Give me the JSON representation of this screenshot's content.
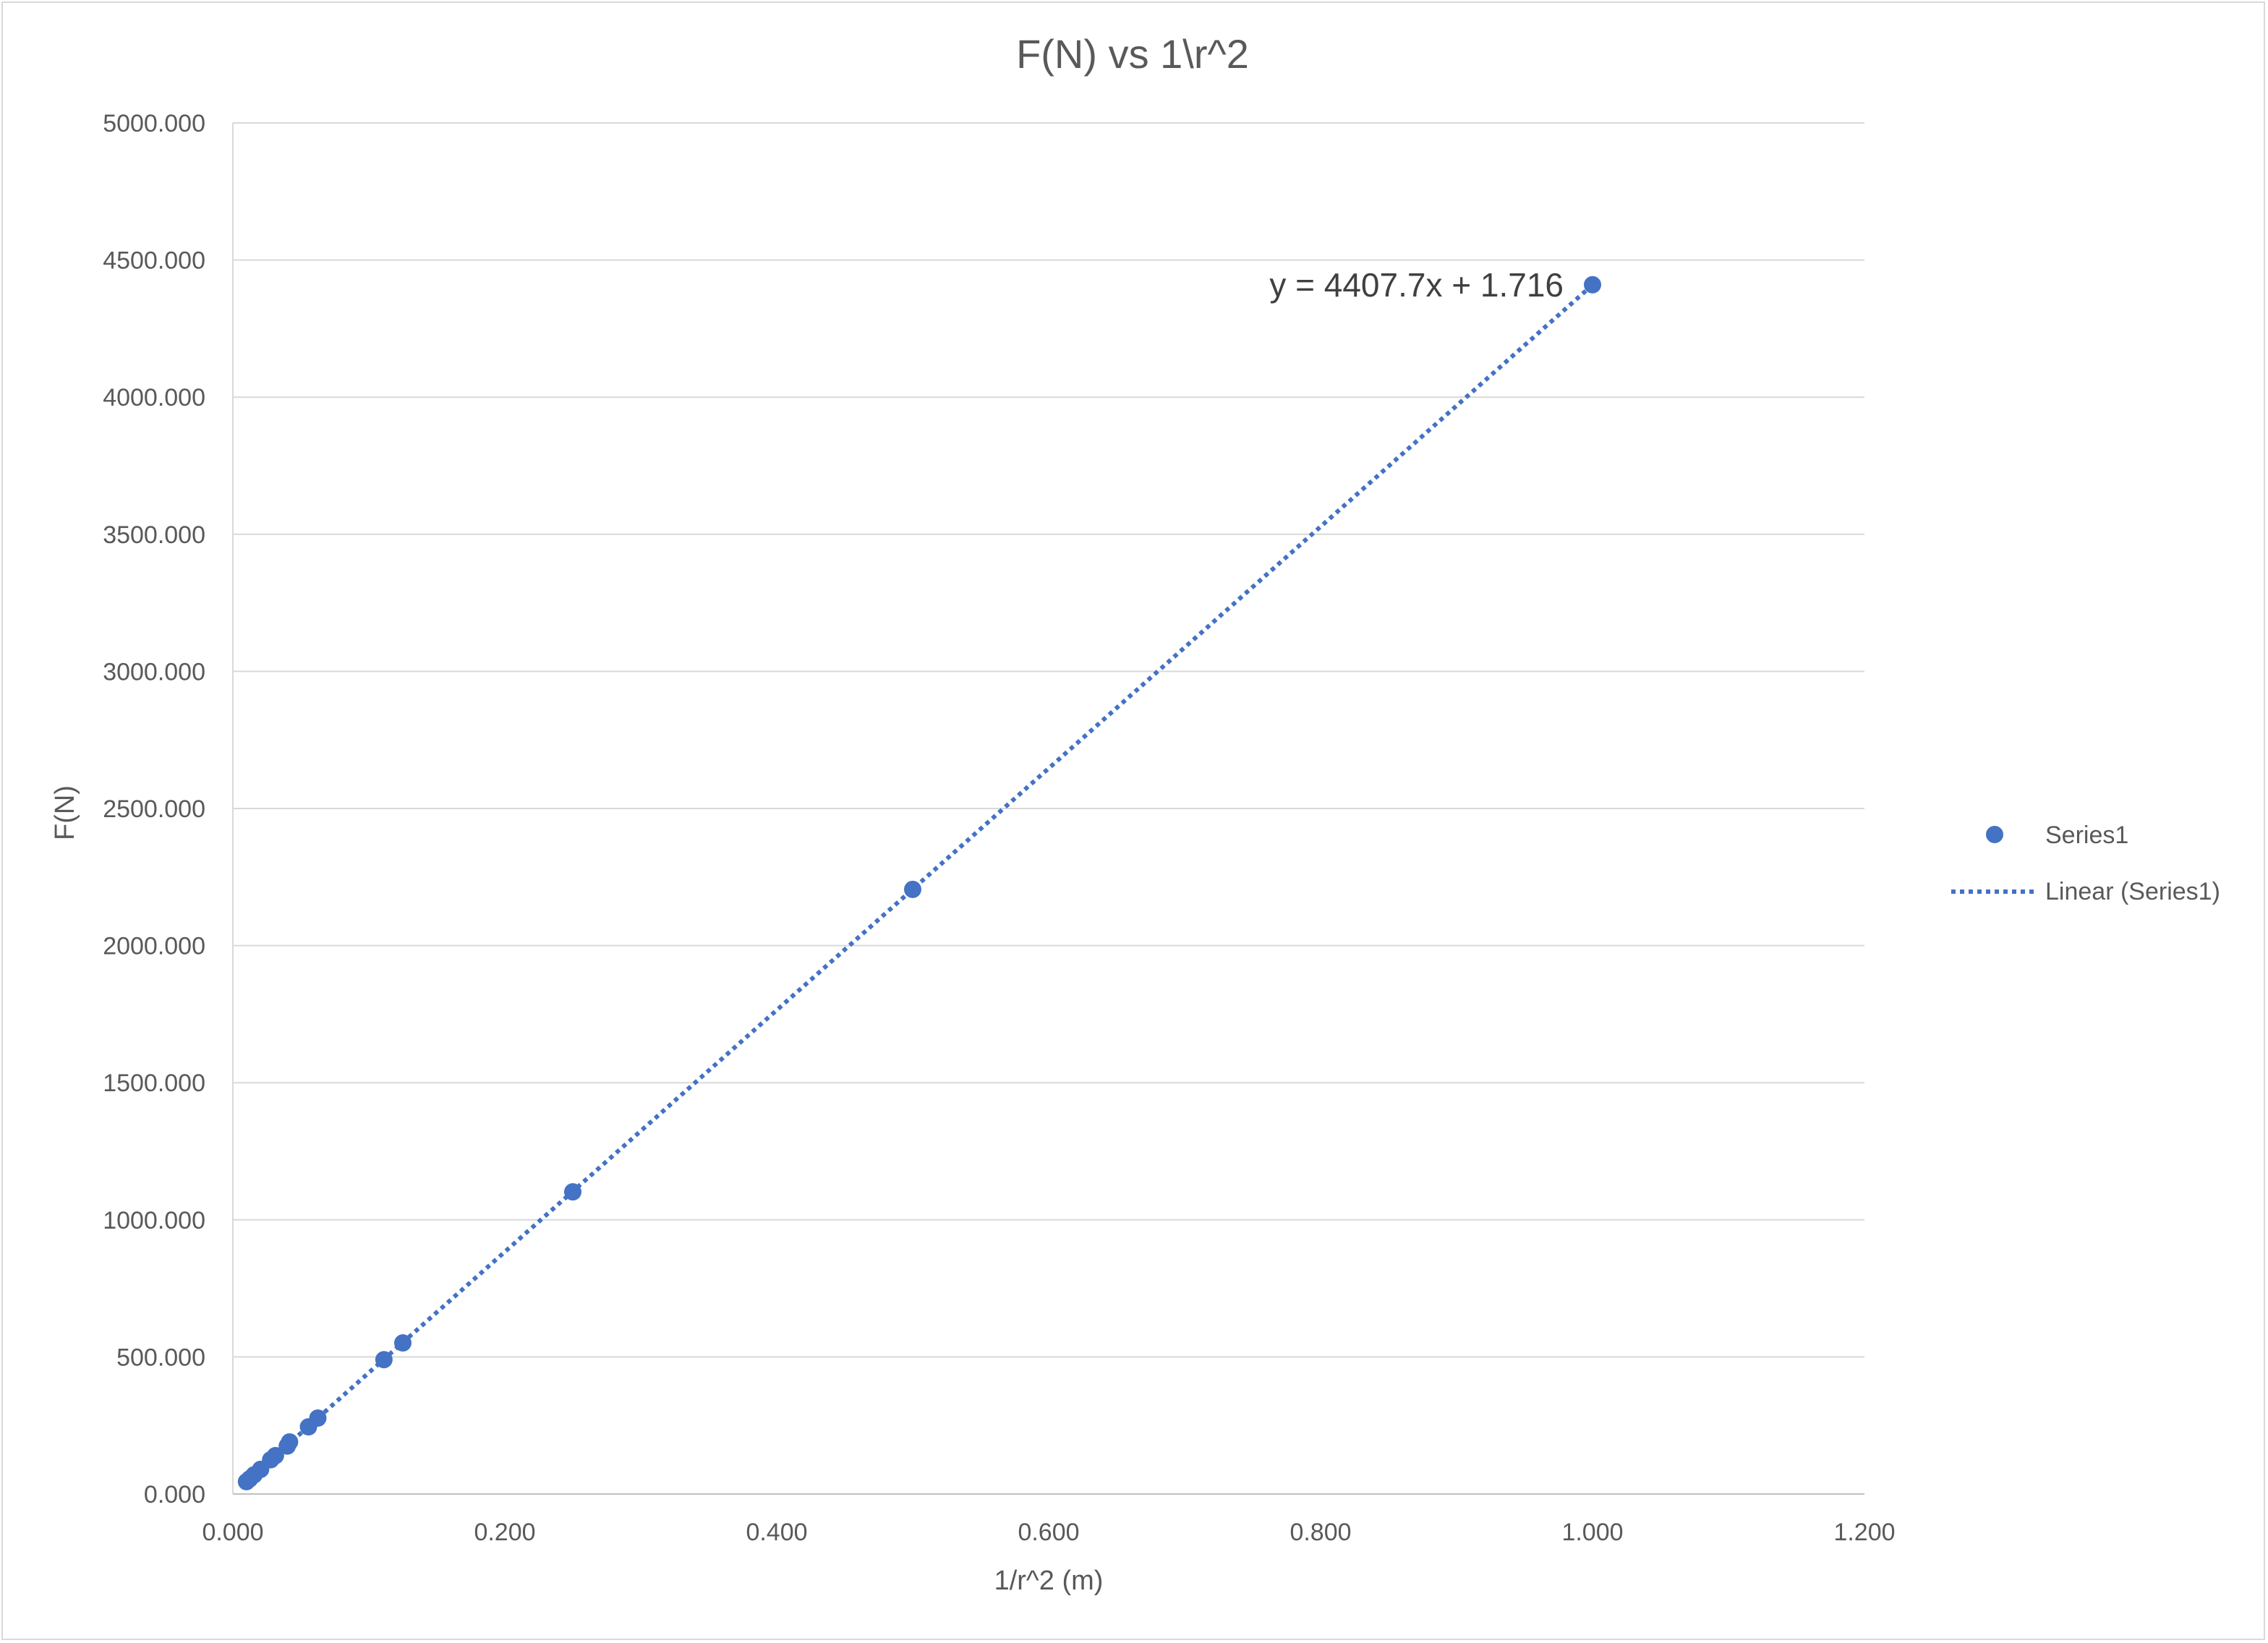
{
  "chart_data": {
    "type": "scatter",
    "title": "F(N) vs 1\\r^2",
    "xlabel": "1/r^2 (m)",
    "ylabel": "F(N)",
    "xlim": [
      0,
      1.2
    ],
    "ylim": [
      0,
      5000
    ],
    "x_ticks": [
      "0.000",
      "0.200",
      "0.400",
      "0.600",
      "0.800",
      "1.000",
      "1.200"
    ],
    "x_tick_values": [
      0,
      0.2,
      0.4,
      0.6,
      0.8,
      1.0,
      1.2
    ],
    "y_ticks": [
      "0.000",
      "500.000",
      "1000.000",
      "1500.000",
      "2000.000",
      "2500.000",
      "3000.000",
      "3500.000",
      "4000.000",
      "4500.000",
      "5000.000"
    ],
    "y_tick_values": [
      0,
      500,
      1000,
      1500,
      2000,
      2500,
      3000,
      3500,
      4000,
      4500,
      5000
    ],
    "grid": "horizontal",
    "legend_position": "right",
    "series": [
      {
        "name": "Series1",
        "color": "#4472c4",
        "x": [
          0.01,
          0.0123,
          0.0156,
          0.0204,
          0.0278,
          0.0313,
          0.04,
          0.0417,
          0.0556,
          0.0625,
          0.1111,
          0.125,
          0.25,
          0.5,
          1.0
        ],
        "y": [
          45,
          55,
          70,
          90,
          125,
          140,
          175,
          190,
          245,
          277,
          490,
          551,
          1102,
          2205,
          4410
        ]
      }
    ],
    "trendline": {
      "name": "Linear (Series1)",
      "type": "linear",
      "slope": 4407.7,
      "intercept": 1.716,
      "x_range": [
        0.01,
        1.0
      ],
      "style": "dotted",
      "color": "#4472c4",
      "equation_label": "y = 4407.7x + 1.716"
    }
  }
}
